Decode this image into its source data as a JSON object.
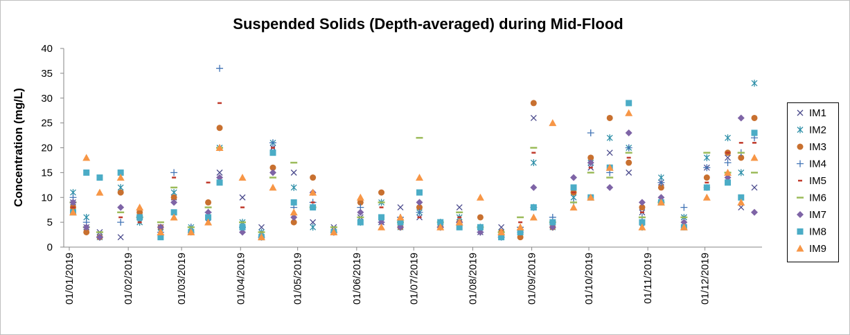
{
  "chart_data": {
    "type": "scatter",
    "title": "Suspended Solids (Depth-averaged) during Mid-Flood",
    "y_label": "Concentration (mg/L)",
    "x": [
      "03/01/2019",
      "10/01/2019",
      "17/01/2019",
      "28/01/2019",
      "07/02/2019",
      "18/02/2019",
      "25/02/2019",
      "06/03/2019",
      "15/03/2019",
      "21/03/2019",
      "02/04/2019",
      "12/04/2019",
      "18/04/2019",
      "29/04/2019",
      "09/05/2019",
      "20/05/2019",
      "03/06/2019",
      "14/06/2019",
      "24/06/2019",
      "04/07/2019",
      "15/07/2019",
      "25/07/2019",
      "05/08/2019",
      "16/08/2019",
      "26/08/2019",
      "02/09/2019",
      "12/09/2019",
      "23/09/2019",
      "02/10/2019",
      "12/10/2019",
      "22/10/2019",
      "29/10/2019",
      "08/11/2019",
      "20/11/2019",
      "02/12/2019",
      "13/12/2019",
      "20/12/2019",
      "27/12/2019"
    ],
    "xlim": [
      "01/01/2019",
      "31/12/2019"
    ],
    "xticks": [
      "01/01/2019",
      "01/02/2019",
      "01/03/2019",
      "01/04/2019",
      "01/05/2019",
      "01/06/2019",
      "01/07/2019",
      "01/08/2019",
      "01/09/2019",
      "01/10/2019",
      "01/11/2019",
      "01/12/2019"
    ],
    "ylim": [
      0,
      40
    ],
    "yticks": [
      0,
      5,
      10,
      15,
      20,
      25,
      30,
      35,
      40
    ],
    "legend": "right",
    "series": [
      {
        "name": "IM1",
        "color": "#4a4a8c",
        "marker": "x",
        "values": [
          9,
          4,
          3,
          2,
          7,
          4,
          10,
          3,
          5,
          15,
          10,
          4,
          20,
          15,
          5,
          4,
          6,
          5,
          8,
          6,
          5,
          8,
          3,
          4,
          3,
          26,
          5,
          12,
          16,
          19,
          15,
          7,
          13,
          6,
          16,
          18,
          8,
          12
        ]
      },
      {
        "name": "IM2",
        "color": "#2e8fa8",
        "marker": "star",
        "values": [
          11,
          6,
          2,
          12,
          5,
          3,
          11,
          4,
          6,
          20,
          5,
          3,
          21,
          12,
          4,
          3,
          5,
          9,
          4,
          7,
          5,
          6,
          4,
          3,
          3,
          17,
          4,
          10,
          17,
          22,
          20,
          4,
          14,
          6,
          18,
          22,
          15,
          33
        ]
      },
      {
        "name": "IM3",
        "color": "#c8702f",
        "marker": "circle",
        "values": [
          8,
          3,
          2,
          11,
          7,
          4,
          10,
          3,
          9,
          24,
          4,
          2,
          16,
          5,
          14,
          3,
          9,
          11,
          4,
          8,
          4,
          5,
          6,
          3,
          2,
          29,
          4,
          11,
          18,
          26,
          17,
          8,
          12,
          4,
          14,
          19,
          18,
          26
        ]
      },
      {
        "name": "IM4",
        "color": "#4173b5",
        "marker": "plus",
        "values": [
          10,
          5,
          2,
          5,
          6,
          3,
          15,
          4,
          7,
          36,
          4,
          2,
          21,
          8,
          9,
          3,
          8,
          5,
          6,
          7,
          4,
          5,
          3,
          2,
          4,
          8,
          6,
          9,
          23,
          15,
          20,
          6,
          13,
          8,
          16,
          17,
          19,
          22
        ]
      },
      {
        "name": "IM5",
        "color": "#c0392b",
        "marker": "dash",
        "values": [
          8,
          4,
          2,
          6,
          5,
          3,
          14,
          3,
          13,
          29,
          8,
          3,
          20,
          6,
          9,
          4,
          7,
          8,
          5,
          6,
          4,
          6,
          3,
          3,
          5,
          19,
          5,
          11,
          16,
          12,
          18,
          7,
          10,
          5,
          13,
          19,
          21,
          21
        ]
      },
      {
        "name": "IM6",
        "color": "#9bbb59",
        "marker": "longdash",
        "values": [
          9,
          4,
          3,
          7,
          6,
          5,
          12,
          4,
          8,
          20,
          5,
          3,
          14,
          17,
          8,
          4,
          6,
          9,
          5,
          22,
          5,
          7,
          4,
          3,
          6,
          20,
          5,
          9,
          15,
          14,
          19,
          6,
          9,
          6,
          19,
          15,
          19,
          15
        ]
      },
      {
        "name": "IM7",
        "color": "#7e64a6",
        "marker": "diamond",
        "values": [
          9,
          4,
          2,
          8,
          6,
          4,
          9,
          3,
          7,
          14,
          3,
          2,
          15,
          6,
          11,
          3,
          7,
          5,
          4,
          9,
          4,
          5,
          3,
          2,
          3,
          12,
          4,
          14,
          17,
          12,
          23,
          9,
          10,
          5,
          12,
          14,
          26,
          7
        ]
      },
      {
        "name": "IM8",
        "color": "#4bacc6",
        "marker": "square",
        "values": [
          7,
          15,
          14,
          15,
          6,
          2,
          7,
          3,
          6,
          13,
          4,
          2,
          19,
          9,
          8,
          3,
          5,
          6,
          5,
          11,
          5,
          4,
          4,
          2,
          3,
          8,
          5,
          12,
          10,
          16,
          29,
          5,
          9,
          4,
          12,
          13,
          10,
          23
        ]
      },
      {
        "name": "IM9",
        "color": "#f79646",
        "marker": "triangle",
        "values": [
          7,
          18,
          11,
          14,
          8,
          3,
          6,
          3,
          5,
          20,
          14,
          2,
          12,
          7,
          11,
          3,
          10,
          4,
          6,
          14,
          4,
          5,
          10,
          3,
          4,
          6,
          25,
          8,
          10,
          16,
          27,
          4,
          9,
          4,
          10,
          15,
          9,
          18
        ]
      }
    ]
  }
}
